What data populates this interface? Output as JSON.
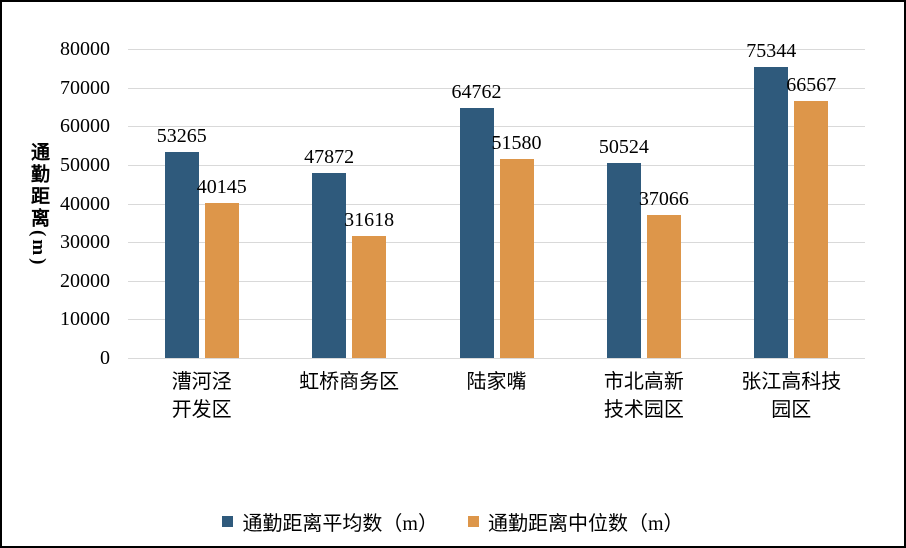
{
  "chart_data": {
    "type": "bar",
    "title": "",
    "ylabel": "通勤距离(m)",
    "ylim": [
      0,
      80000
    ],
    "ytick_step": 10000,
    "yticks": [
      "0",
      "10000",
      "20000",
      "30000",
      "40000",
      "50000",
      "60000",
      "70000",
      "80000"
    ],
    "grid": true,
    "gridline_color": "#d9d9d9",
    "legend_position": "bottom",
    "categories": [
      {
        "lines": [
          "漕河泾",
          "开发区"
        ]
      },
      {
        "lines": [
          "虹桥商务区"
        ]
      },
      {
        "lines": [
          "陆家嘴"
        ]
      },
      {
        "lines": [
          "市北高新",
          "技术园区"
        ]
      },
      {
        "lines": [
          "张江高科技",
          "园区"
        ]
      }
    ],
    "series": [
      {
        "name": "通勤距离平均数（m）",
        "color": "#2f5a7c",
        "values": [
          53265,
          47872,
          64762,
          50524,
          75344
        ]
      },
      {
        "name": "通勤距离中位数（m）",
        "color": "#dd964a",
        "values": [
          40145,
          31618,
          51580,
          37066,
          66567
        ]
      }
    ]
  }
}
